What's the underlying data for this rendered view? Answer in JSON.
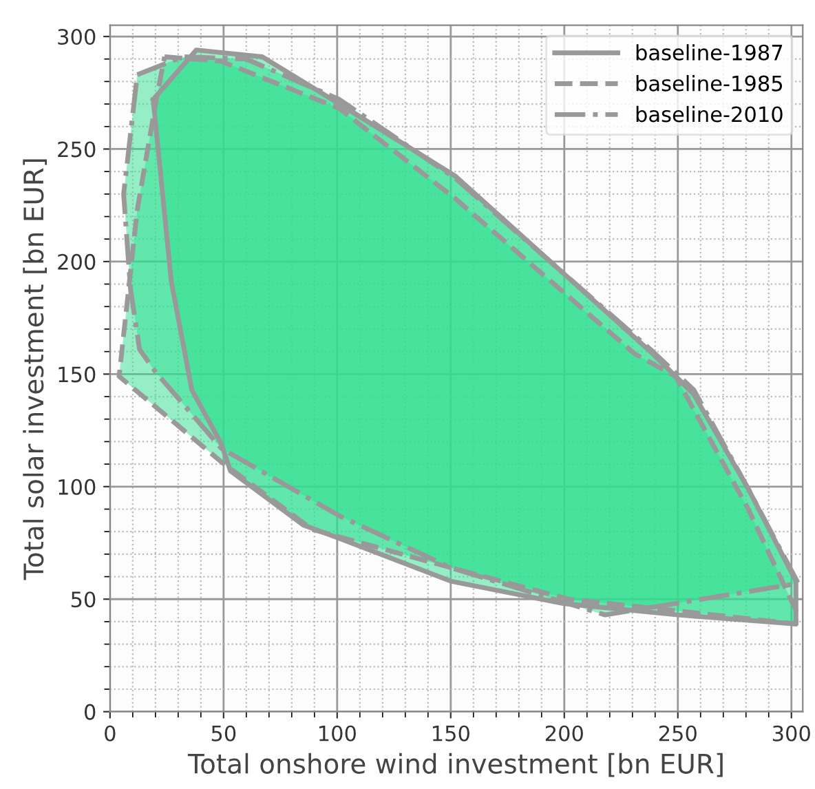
{
  "chart_data": {
    "type": "area",
    "xlabel": "Total onshore wind investment [bn EUR]",
    "ylabel": "Total solar investment [bn EUR]",
    "xlim": [
      0,
      305
    ],
    "ylim": [
      0,
      305
    ],
    "xticks": [
      0,
      50,
      100,
      150,
      200,
      250,
      300
    ],
    "yticks": [
      0,
      50,
      100,
      150,
      200,
      250,
      300
    ],
    "grid": true,
    "legend": "top right",
    "marker": "none",
    "series": [
      {
        "name": "baseline-1987",
        "color": "#999999",
        "line_style": "solid",
        "x": [
          19,
          38,
          67,
          101,
          152,
          239,
          257,
          281,
          302,
          302,
          250,
          200,
          150,
          101,
          85,
          53,
          49,
          36,
          27,
          19
        ],
        "values": [
          272,
          294,
          291,
          270,
          238,
          159,
          141,
          99,
          58,
          39,
          43,
          48,
          58,
          77,
          83,
          107,
          119,
          143,
          191,
          272
        ]
      },
      {
        "name": "baseline-1985",
        "color": "#999999",
        "line_style": "dashed",
        "x": [
          24,
          49,
          101,
          152,
          231,
          249,
          281,
          302,
          302,
          202,
          150,
          89,
          49,
          4,
          12,
          20,
          24
        ],
        "values": [
          291,
          289,
          268,
          228,
          159,
          149,
          90,
          45,
          39,
          50,
          64,
          81,
          111,
          149,
          223,
          270,
          291
        ]
      },
      {
        "name": "baseline-2010",
        "color": "#999999",
        "line_style": "dashdot",
        "x": [
          12,
          32,
          60,
          101,
          152,
          239,
          257,
          281,
          303,
          218,
          150,
          101,
          49,
          20,
          13,
          9,
          6,
          12
        ],
        "values": [
          283,
          291,
          290,
          272,
          237,
          160,
          143,
          99,
          57,
          43,
          64,
          87,
          117,
          151,
          161,
          188,
          230,
          283
        ]
      }
    ]
  }
}
